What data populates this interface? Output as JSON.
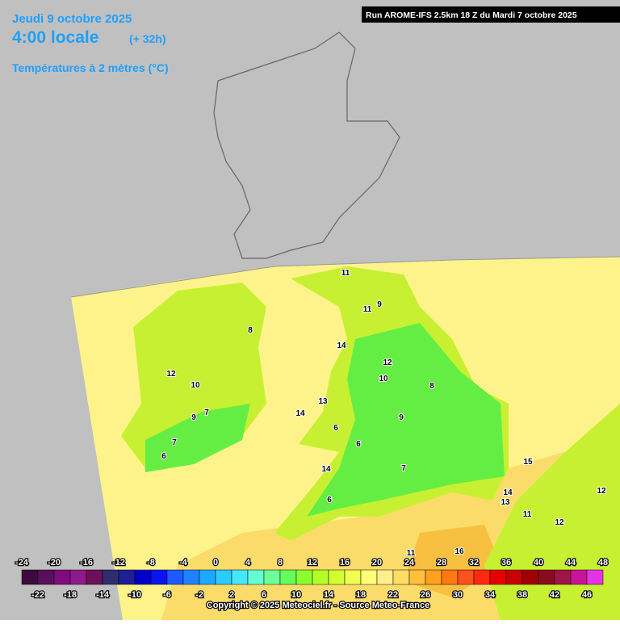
{
  "header": {
    "date": "Jeudi 9 octobre 2025",
    "time": "4:00 locale",
    "lead": "(+ 32h)",
    "subtitle": "Températures à 2 mètres (°C)"
  },
  "run": "Run AROME-IFS 2.5km 18 Z du Mardi 7 octobre 2025",
  "legend": {
    "colors": [
      "#3c0a3c",
      "#5a0f5a",
      "#800a80",
      "#8c1a8c",
      "#6e0f5a",
      "#2e2e6e",
      "#1e1e96",
      "#0000c8",
      "#0a14f0",
      "#1e5aff",
      "#1e82ff",
      "#1ea8ff",
      "#28ccff",
      "#46e6ff",
      "#64ffd2",
      "#6eff96",
      "#64ff5a",
      "#8cff32",
      "#b4ff28",
      "#d2ff32",
      "#f0ff50",
      "#ffff78",
      "#fff08c",
      "#ffdc64",
      "#ffc03c",
      "#ffa01e",
      "#ff7814",
      "#ff501e",
      "#ff2810",
      "#e60000",
      "#c80000",
      "#a00000",
      "#8c0a1e",
      "#a0144a",
      "#c81496",
      "#e632e6"
    ],
    "top_labels": [
      -24,
      -20,
      -16,
      -12,
      -8,
      -4,
      0,
      4,
      8,
      12,
      16,
      20,
      24,
      28,
      32,
      36,
      40,
      44,
      48
    ],
    "bottom_labels": [
      -22,
      -18,
      -14,
      -10,
      -6,
      -2,
      2,
      6,
      10,
      14,
      18,
      22,
      26,
      30,
      34,
      38,
      42,
      46
    ]
  },
  "copyright": "Copyright © 2025 Meteociel.fr - Source Meteo-France",
  "contour_labels": [
    11,
    9,
    14,
    12,
    10,
    8,
    7,
    6,
    9,
    10,
    11,
    12,
    9,
    7,
    8,
    6,
    7,
    14,
    13,
    14,
    6,
    6,
    15,
    14,
    13,
    11,
    12,
    12,
    16,
    11
  ]
}
